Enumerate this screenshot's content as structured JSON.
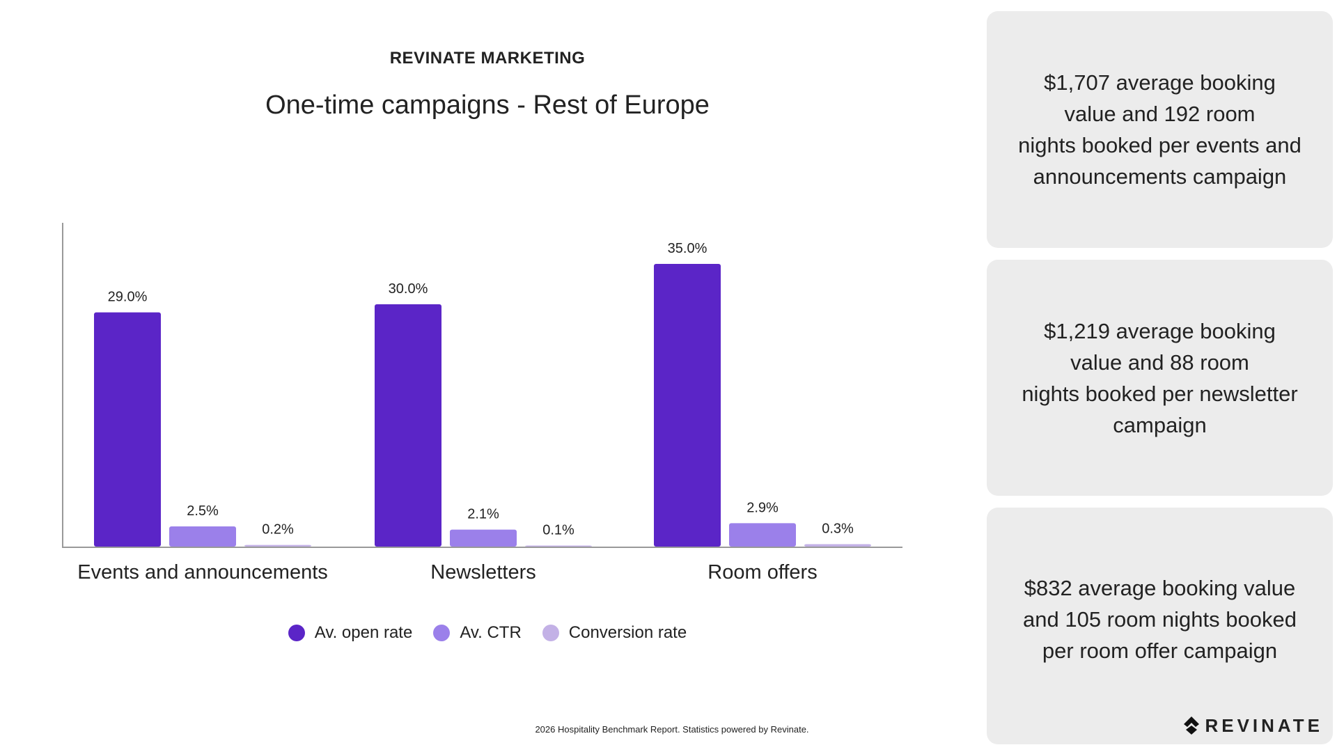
{
  "header": {
    "brand": "REVINATE MARKETING",
    "title": "One-time campaigns - Rest of Europe"
  },
  "chart_data": {
    "type": "bar",
    "title": "One-time campaigns - Rest of Europe",
    "categories": [
      "Events and announcements",
      "Newsletters",
      "Room offers"
    ],
    "series": [
      {
        "name": "Av. open rate",
        "color": "#5b25c7",
        "values": [
          29.0,
          30.0,
          35.0
        ],
        "labels": [
          "29.0%",
          "30.0%",
          "35.0%"
        ]
      },
      {
        "name": "Av. CTR",
        "color": "#9b80ea",
        "values": [
          2.5,
          2.1,
          2.9
        ],
        "labels": [
          "2.5%",
          "2.1%",
          "2.9%"
        ]
      },
      {
        "name": "Conversion rate",
        "color": "#c3b1e6",
        "values": [
          0.2,
          0.1,
          0.3
        ],
        "labels": [
          "0.2%",
          "0.1%",
          "0.3%"
        ]
      }
    ],
    "xlabel": "",
    "ylabel": "",
    "ylim": [
      0,
      35
    ],
    "grid": false,
    "legend": "bottom"
  },
  "cards": [
    {
      "lines": [
        "$1,707 average booking",
        "value and 192 room",
        "nights booked per events and",
        "announcements campaign"
      ]
    },
    {
      "lines": [
        "$1,219 average booking",
        "value and 88 room",
        "nights booked per newsletter",
        "campaign"
      ]
    },
    {
      "lines": [
        "$832 average booking value",
        "and 105 room nights booked",
        "per room offer campaign"
      ]
    }
  ],
  "logo": {
    "text": "REVINATE"
  },
  "footer": "2026 Hospitality Benchmark Report. Statistics powered by Revinate."
}
